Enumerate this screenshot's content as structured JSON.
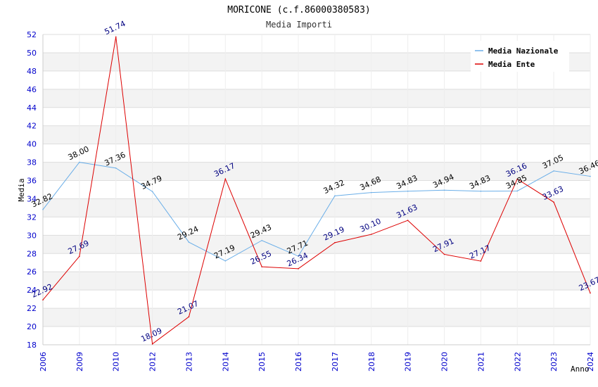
{
  "chart_data": {
    "type": "line",
    "title": "MORICONE (c.f.86000380583)",
    "subtitle": "Media Importi",
    "xlabel": "Anno",
    "ylabel": "Media",
    "ylim": [
      18,
      52
    ],
    "yticks": [
      "18",
      "20",
      "22",
      "24",
      "26",
      "28",
      "30",
      "32",
      "34",
      "36",
      "38",
      "40",
      "42",
      "44",
      "46",
      "48",
      "50",
      "52"
    ],
    "categories": [
      "2006",
      "2009",
      "2010",
      "2012",
      "2013",
      "2014",
      "2015",
      "2016",
      "2017",
      "2018",
      "2019",
      "2020",
      "2021",
      "2022",
      "2023",
      "2024"
    ],
    "series": [
      {
        "name": "Media Nazionale",
        "color": "#6aaee8",
        "values": [
          32.82,
          38.0,
          37.36,
          34.79,
          29.24,
          27.19,
          29.43,
          27.71,
          34.32,
          34.68,
          34.83,
          34.94,
          34.83,
          34.85,
          37.05,
          36.46
        ],
        "labels": [
          "32.82",
          "38.00",
          "37.36",
          "34.79",
          "29.24",
          "27.19",
          "29.43",
          "27.71",
          "34.32",
          "34.68",
          "34.83",
          "34.94",
          "34.83",
          "34.85",
          "37.05",
          "36.46"
        ]
      },
      {
        "name": "Media Ente",
        "color": "#dd0000",
        "values": [
          22.92,
          27.69,
          51.74,
          18.09,
          21.07,
          36.17,
          26.55,
          26.34,
          29.19,
          30.1,
          31.63,
          27.91,
          27.17,
          36.16,
          33.63,
          23.67
        ],
        "labels": [
          "22.92",
          "27.69",
          "51.74",
          "18.09",
          "21.07",
          "36.17",
          "26.55",
          "26.34",
          "29.19",
          "30.10",
          "31.63",
          "27.91",
          "27.17",
          "36.16",
          "33.63",
          "23.67"
        ]
      }
    ],
    "grid": true,
    "legend_position": "top-right"
  }
}
